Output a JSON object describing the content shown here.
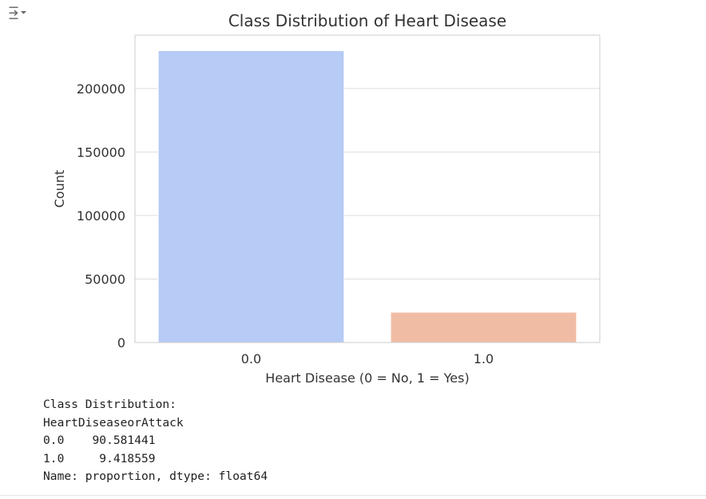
{
  "toolbar": {
    "output_toggle_icon": "collapse-output-icon"
  },
  "chart_data": {
    "type": "bar",
    "title": "Class Distribution of Heart Disease",
    "xlabel": "Heart Disease (0 = No, 1 = Yes)",
    "ylabel": "Count",
    "categories": [
      "0.0",
      "1.0"
    ],
    "values": [
      229787,
      23893
    ],
    "colors": [
      "#b6cbf5",
      "#f0bca4"
    ],
    "ylim": [
      0,
      242000
    ],
    "yticks": [
      0,
      50000,
      100000,
      150000,
      200000
    ],
    "ytick_labels": [
      "0",
      "50000",
      "100000",
      "150000",
      "200000"
    ],
    "grid": true,
    "grid_color": "#dddddd"
  },
  "output_text": {
    "lines": [
      "Class Distribution:",
      "HeartDiseaseorAttack",
      "0.0    90.581441",
      "1.0     9.418559",
      "Name: proportion, dtype: float64"
    ]
  }
}
